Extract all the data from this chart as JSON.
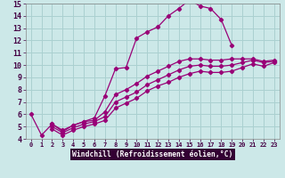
{
  "xlabel": "Windchill (Refroidissement éolien,°C)",
  "bg_color": "#cce8e8",
  "grid_color": "#aad0d0",
  "line_color": "#990077",
  "xlabel_bg": "#330033",
  "xlim": [
    -0.5,
    23.5
  ],
  "ylim": [
    4,
    15
  ],
  "xticks": [
    0,
    1,
    2,
    3,
    4,
    5,
    6,
    7,
    8,
    9,
    10,
    11,
    12,
    13,
    14,
    15,
    16,
    17,
    18,
    19,
    20,
    21,
    22,
    23
  ],
  "yticks": [
    4,
    5,
    6,
    7,
    8,
    9,
    10,
    11,
    12,
    13,
    14,
    15
  ],
  "curve1_x": [
    0,
    1,
    2,
    3,
    4,
    5,
    6,
    7,
    8,
    9,
    10,
    11,
    12,
    13,
    14,
    15,
    16,
    17,
    18,
    19
  ],
  "curve1_y": [
    6.0,
    4.3,
    5.2,
    4.6,
    5.1,
    5.4,
    5.7,
    7.5,
    9.7,
    9.8,
    12.2,
    12.7,
    13.1,
    14.0,
    14.6,
    15.3,
    14.8,
    14.6,
    13.7,
    11.6
  ],
  "curve2_x": [
    2,
    3,
    4,
    5,
    6,
    7,
    8,
    9,
    10,
    11,
    12,
    13,
    14,
    15,
    16,
    17,
    18,
    19,
    20,
    21,
    22,
    23
  ],
  "curve2_y": [
    5.2,
    4.7,
    5.1,
    5.4,
    5.5,
    6.2,
    7.6,
    8.0,
    8.5,
    9.1,
    9.5,
    9.9,
    10.3,
    10.5,
    10.5,
    10.4,
    10.4,
    10.5,
    10.5,
    10.5,
    10.3,
    10.4
  ],
  "curve3_x": [
    2,
    3,
    4,
    5,
    6,
    7,
    8,
    9,
    10,
    11,
    12,
    13,
    14,
    15,
    16,
    17,
    18,
    19,
    20,
    21,
    22,
    23
  ],
  "curve3_y": [
    5.0,
    4.5,
    4.9,
    5.2,
    5.4,
    5.8,
    7.0,
    7.4,
    7.8,
    8.4,
    8.8,
    9.2,
    9.6,
    9.9,
    10.0,
    9.9,
    9.9,
    10.0,
    10.2,
    10.4,
    10.2,
    10.3
  ],
  "curve4_x": [
    2,
    3,
    4,
    5,
    6,
    7,
    8,
    9,
    10,
    11,
    12,
    13,
    14,
    15,
    16,
    17,
    18,
    19,
    20,
    21,
    22,
    23
  ],
  "curve4_y": [
    4.8,
    4.3,
    4.7,
    5.0,
    5.2,
    5.5,
    6.5,
    6.9,
    7.3,
    7.9,
    8.3,
    8.6,
    9.0,
    9.3,
    9.5,
    9.4,
    9.4,
    9.5,
    9.8,
    10.1,
    9.9,
    10.2
  ]
}
